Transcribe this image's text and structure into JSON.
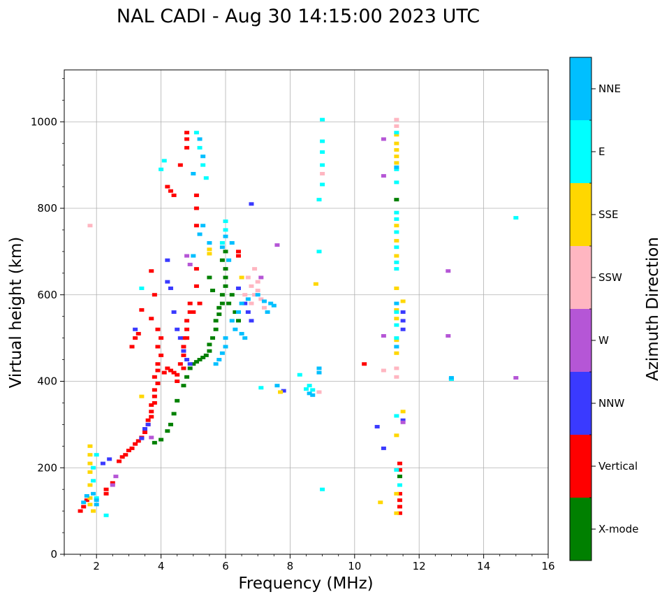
{
  "chart_data": {
    "type": "scatter",
    "title": "NAL CADI - Aug 30 14:15:00 2023 UTC",
    "xlabel": "Frequency (MHz)",
    "ylabel": "Virtual height (km)",
    "xlim": [
      1,
      16
    ],
    "ylim": [
      0,
      1120
    ],
    "x_ticks": [
      2,
      4,
      6,
      8,
      10,
      12,
      14,
      16
    ],
    "y_ticks": [
      0,
      200,
      400,
      600,
      800,
      1000
    ],
    "grid": true,
    "colorbar": {
      "label": "Azimuth Direction",
      "position": "right",
      "categories": [
        {
          "name": "X-mode",
          "color": "#008000"
        },
        {
          "name": "Vertical",
          "color": "#ff0000"
        },
        {
          "name": "NNW",
          "color": "#3a3aff"
        },
        {
          "name": "W",
          "color": "#b556d6"
        },
        {
          "name": "SSW",
          "color": "#ffb6c1"
        },
        {
          "name": "SSE",
          "color": "#ffd700"
        },
        {
          "name": "E",
          "color": "#00ffff"
        },
        {
          "name": "NNE",
          "color": "#00bfff"
        }
      ]
    },
    "series": [
      {
        "name": "Vertical",
        "points": [
          [
            1.5,
            100
          ],
          [
            1.6,
            110
          ],
          [
            1.7,
            125
          ],
          [
            2.3,
            140
          ],
          [
            2.3,
            150
          ],
          [
            2.5,
            165
          ],
          [
            2.7,
            215
          ],
          [
            2.8,
            225
          ],
          [
            2.9,
            230
          ],
          [
            3.0,
            240
          ],
          [
            3.1,
            245
          ],
          [
            3.2,
            255
          ],
          [
            3.3,
            262
          ],
          [
            3.4,
            270
          ],
          [
            3.5,
            282
          ],
          [
            3.5,
            290
          ],
          [
            3.6,
            300
          ],
          [
            3.6,
            310
          ],
          [
            3.7,
            318
          ],
          [
            3.7,
            330
          ],
          [
            3.7,
            345
          ],
          [
            3.8,
            350
          ],
          [
            3.8,
            365
          ],
          [
            3.8,
            380
          ],
          [
            3.9,
            395
          ],
          [
            3.8,
            410
          ],
          [
            3.9,
            425
          ],
          [
            3.9,
            440
          ],
          [
            4.0,
            460
          ],
          [
            3.9,
            480
          ],
          [
            4.0,
            500
          ],
          [
            3.9,
            520
          ],
          [
            4.1,
            420
          ],
          [
            4.2,
            430
          ],
          [
            4.3,
            425
          ],
          [
            4.4,
            420
          ],
          [
            4.5,
            415
          ],
          [
            4.6,
            440
          ],
          [
            4.7,
            460
          ],
          [
            4.7,
            480
          ],
          [
            4.8,
            500
          ],
          [
            4.8,
            520
          ],
          [
            4.8,
            540
          ],
          [
            4.9,
            560
          ],
          [
            4.9,
            580
          ],
          [
            5.1,
            620
          ],
          [
            5.1,
            660
          ],
          [
            5.1,
            760
          ],
          [
            5.1,
            800
          ],
          [
            5.1,
            830
          ],
          [
            4.2,
            850
          ],
          [
            4.3,
            840
          ],
          [
            4.4,
            830
          ],
          [
            4.6,
            900
          ],
          [
            4.8,
            960
          ],
          [
            4.8,
            975
          ],
          [
            4.8,
            940
          ],
          [
            3.1,
            480
          ],
          [
            3.2,
            500
          ],
          [
            3.4,
            565
          ],
          [
            3.7,
            655
          ],
          [
            6.4,
            700
          ],
          [
            6.4,
            690
          ],
          [
            10.3,
            440
          ],
          [
            11.4,
            210
          ],
          [
            11.4,
            195
          ],
          [
            11.4,
            140
          ],
          [
            11.4,
            125
          ],
          [
            11.4,
            110
          ],
          [
            11.4,
            95
          ],
          [
            3.3,
            510
          ],
          [
            3.7,
            545
          ],
          [
            3.8,
            600
          ],
          [
            4.5,
            400
          ],
          [
            4.7,
            500
          ],
          [
            4.7,
            430
          ],
          [
            5.0,
            560
          ],
          [
            5.2,
            580
          ]
        ]
      },
      {
        "name": "X-mode",
        "points": [
          [
            3.8,
            258
          ],
          [
            4.0,
            265
          ],
          [
            4.2,
            285
          ],
          [
            4.3,
            300
          ],
          [
            4.4,
            325
          ],
          [
            4.5,
            355
          ],
          [
            4.7,
            390
          ],
          [
            4.8,
            410
          ],
          [
            4.9,
            430
          ],
          [
            5.0,
            440
          ],
          [
            5.1,
            445
          ],
          [
            5.2,
            450
          ],
          [
            5.3,
            455
          ],
          [
            5.4,
            460
          ],
          [
            5.5,
            470
          ],
          [
            5.5,
            485
          ],
          [
            5.6,
            500
          ],
          [
            5.7,
            520
          ],
          [
            5.7,
            540
          ],
          [
            5.8,
            555
          ],
          [
            5.8,
            570
          ],
          [
            5.9,
            580
          ],
          [
            5.9,
            600
          ],
          [
            6.0,
            620
          ],
          [
            6.0,
            640
          ],
          [
            6.0,
            660
          ],
          [
            5.9,
            680
          ],
          [
            6.0,
            700
          ],
          [
            6.1,
            580
          ],
          [
            6.2,
            600
          ],
          [
            6.3,
            560
          ],
          [
            6.4,
            540
          ],
          [
            5.6,
            610
          ],
          [
            5.5,
            640
          ],
          [
            11.3,
            820
          ],
          [
            11.4,
            180
          ]
        ]
      },
      {
        "name": "NNW",
        "points": [
          [
            4.2,
            680
          ],
          [
            4.2,
            630
          ],
          [
            4.3,
            615
          ],
          [
            4.4,
            560
          ],
          [
            4.5,
            520
          ],
          [
            4.6,
            500
          ],
          [
            4.7,
            470
          ],
          [
            4.8,
            450
          ],
          [
            4.9,
            440
          ],
          [
            3.5,
            290
          ],
          [
            3.6,
            300
          ],
          [
            3.4,
            268
          ],
          [
            2.4,
            220
          ],
          [
            2.2,
            210
          ],
          [
            6.6,
            580
          ],
          [
            6.7,
            560
          ],
          [
            6.8,
            540
          ],
          [
            6.4,
            615
          ],
          [
            11.5,
            560
          ],
          [
            11.5,
            540
          ],
          [
            11.5,
            520
          ],
          [
            11.5,
            310
          ],
          [
            10.7,
            295
          ],
          [
            10.9,
            245
          ],
          [
            7.8,
            378
          ],
          [
            6.8,
            810
          ],
          [
            3.2,
            520
          ]
        ]
      },
      {
        "name": "W",
        "points": [
          [
            12.9,
            655
          ],
          [
            12.9,
            505
          ],
          [
            13.0,
            405
          ],
          [
            15.0,
            408
          ],
          [
            10.9,
            960
          ],
          [
            10.9,
            875
          ],
          [
            10.9,
            505
          ],
          [
            7.6,
            715
          ],
          [
            7.1,
            640
          ],
          [
            4.8,
            690
          ],
          [
            4.9,
            670
          ],
          [
            3.7,
            270
          ],
          [
            2.6,
            180
          ],
          [
            2.5,
            160
          ],
          [
            11.5,
            305
          ]
        ]
      },
      {
        "name": "SSW",
        "points": [
          [
            6.8,
            620
          ],
          [
            6.9,
            600
          ],
          [
            7.0,
            610
          ],
          [
            7.0,
            630
          ],
          [
            7.1,
            590
          ],
          [
            6.9,
            660
          ],
          [
            6.7,
            640
          ],
          [
            7.2,
            570
          ],
          [
            6.6,
            600
          ],
          [
            6.8,
            580
          ],
          [
            10.9,
            425
          ],
          [
            11.3,
            1005
          ],
          [
            11.3,
            990
          ],
          [
            11.3,
            480
          ],
          [
            11.3,
            430
          ],
          [
            11.3,
            410
          ],
          [
            9.0,
            880
          ],
          [
            8.9,
            375
          ],
          [
            1.8,
            760
          ]
        ]
      },
      {
        "name": "SSE",
        "points": [
          [
            1.8,
            130
          ],
          [
            1.8,
            160
          ],
          [
            1.8,
            190
          ],
          [
            1.8,
            210
          ],
          [
            1.8,
            230
          ],
          [
            1.8,
            250
          ],
          [
            1.8,
            115
          ],
          [
            1.9,
            100
          ],
          [
            3.4,
            365
          ],
          [
            5.5,
            705
          ],
          [
            5.5,
            695
          ],
          [
            6.5,
            640
          ],
          [
            8.8,
            625
          ],
          [
            11.3,
            970
          ],
          [
            11.3,
            950
          ],
          [
            11.3,
            935
          ],
          [
            11.3,
            920
          ],
          [
            11.3,
            905
          ],
          [
            11.3,
            760
          ],
          [
            11.3,
            725
          ],
          [
            11.3,
            690
          ],
          [
            11.3,
            615
          ],
          [
            11.3,
            565
          ],
          [
            11.3,
            545
          ],
          [
            11.3,
            495
          ],
          [
            11.3,
            465
          ],
          [
            11.3,
            275
          ],
          [
            11.3,
            95
          ],
          [
            11.5,
            330
          ],
          [
            11.5,
            585
          ],
          [
            10.8,
            120
          ],
          [
            7.7,
            375
          ],
          [
            11.3,
            140
          ]
        ]
      },
      {
        "name": "E",
        "points": [
          [
            1.9,
            200
          ],
          [
            1.9,
            170
          ],
          [
            2.0,
            230
          ],
          [
            2.0,
            130
          ],
          [
            2.3,
            90
          ],
          [
            5.1,
            975
          ],
          [
            5.2,
            940
          ],
          [
            5.3,
            900
          ],
          [
            5.4,
            870
          ],
          [
            9.0,
            1005
          ],
          [
            9.0,
            955
          ],
          [
            9.0,
            930
          ],
          [
            9.0,
            900
          ],
          [
            9.0,
            855
          ],
          [
            8.9,
            820
          ],
          [
            8.9,
            700
          ],
          [
            8.7,
            380
          ],
          [
            8.6,
            390
          ],
          [
            8.5,
            382
          ],
          [
            8.3,
            415
          ],
          [
            9.0,
            150
          ],
          [
            11.3,
            975
          ],
          [
            11.3,
            890
          ],
          [
            11.3,
            860
          ],
          [
            11.3,
            790
          ],
          [
            11.3,
            775
          ],
          [
            11.3,
            745
          ],
          [
            11.3,
            710
          ],
          [
            11.3,
            675
          ],
          [
            11.3,
            660
          ],
          [
            11.3,
            560
          ],
          [
            11.3,
            530
          ],
          [
            11.3,
            500
          ],
          [
            11.3,
            320
          ],
          [
            11.3,
            195
          ],
          [
            11.4,
            160
          ],
          [
            15.0,
            778
          ],
          [
            13.0,
            405
          ],
          [
            6.0,
            770
          ],
          [
            6.0,
            750
          ],
          [
            5.9,
            720
          ],
          [
            4.1,
            910
          ],
          [
            4.0,
            890
          ],
          [
            3.4,
            615
          ],
          [
            7.1,
            385
          ]
        ]
      },
      {
        "name": "NNE",
        "points": [
          [
            1.6,
            120
          ],
          [
            1.7,
            135
          ],
          [
            1.9,
            140
          ],
          [
            2.0,
            125
          ],
          [
            2.0,
            115
          ],
          [
            5.2,
            960
          ],
          [
            5.3,
            920
          ],
          [
            5.0,
            880
          ],
          [
            5.0,
            690
          ],
          [
            5.2,
            740
          ],
          [
            5.3,
            760
          ],
          [
            5.5,
            720
          ],
          [
            5.9,
            710
          ],
          [
            6.0,
            735
          ],
          [
            6.2,
            720
          ],
          [
            6.1,
            680
          ],
          [
            6.2,
            540
          ],
          [
            6.3,
            520
          ],
          [
            6.5,
            510
          ],
          [
            6.6,
            500
          ],
          [
            6.4,
            560
          ],
          [
            6.5,
            580
          ],
          [
            6.7,
            590
          ],
          [
            7.0,
            600
          ],
          [
            7.2,
            585
          ],
          [
            7.3,
            560
          ],
          [
            7.4,
            580
          ],
          [
            7.5,
            575
          ],
          [
            6.0,
            500
          ],
          [
            6.0,
            480
          ],
          [
            5.9,
            465
          ],
          [
            5.8,
            450
          ],
          [
            5.7,
            440
          ],
          [
            8.9,
            430
          ],
          [
            8.9,
            420
          ],
          [
            8.6,
            372
          ],
          [
            8.7,
            368
          ],
          [
            11.3,
            895
          ],
          [
            11.3,
            580
          ],
          [
            11.3,
            480
          ],
          [
            13.0,
            408
          ],
          [
            7.6,
            390
          ]
        ]
      }
    ]
  }
}
